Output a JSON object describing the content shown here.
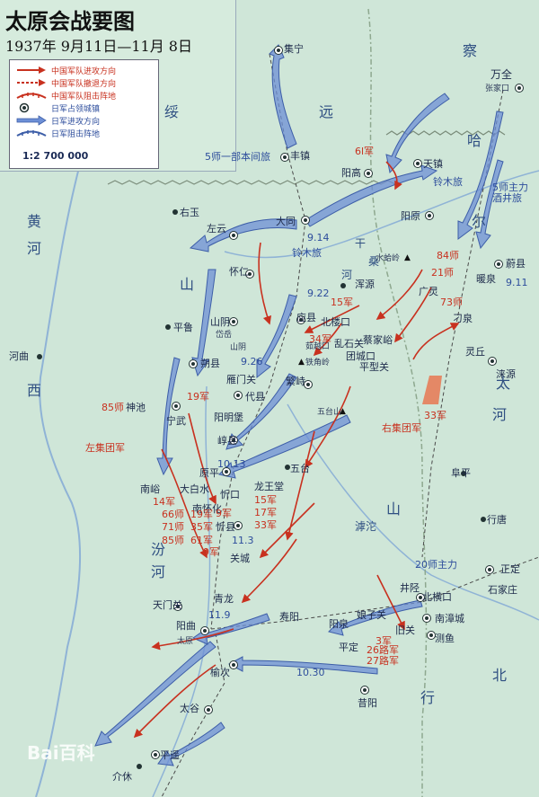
{
  "title": "太原会战要图",
  "subtitle": "1937年 9月11日—11月 8日",
  "legend": {
    "items": [
      {
        "label": "中国军队进攻方向",
        "color": "#d23a22"
      },
      {
        "label": "中国军队撤退方向",
        "color": "#d23a22"
      },
      {
        "label": "中国军队阻击阵地",
        "color": "#d23a22"
      },
      {
        "label": "日军占领城镇",
        "color": "#2d4d9c"
      },
      {
        "label": "日军进攻方向",
        "color": "#2d4d9c"
      },
      {
        "label": "日军阻击阵地",
        "color": "#2d4d9c"
      }
    ],
    "scale": "1:2 700 000"
  },
  "colors": {
    "land": "#cfe6d8",
    "red": "#c8311f",
    "blue": "#5a7fc8",
    "border": "#8ea88f"
  },
  "provinces": [
    "绥",
    "远",
    "察",
    "哈",
    "尔",
    "山",
    "西",
    "河",
    "北",
    "太",
    "行",
    "山",
    "黄",
    "河",
    "汾",
    "河",
    "滹沱",
    "桑",
    "干",
    "河"
  ],
  "cities": [
    {
      "name": "集宁"
    },
    {
      "name": "万全"
    },
    {
      "name": "张家口"
    },
    {
      "name": "丰镇"
    },
    {
      "name": "天镇"
    },
    {
      "name": "阳高"
    },
    {
      "name": "右玉"
    },
    {
      "name": "左云"
    },
    {
      "name": "大同"
    },
    {
      "name": "阳原"
    },
    {
      "name": "怀仁"
    },
    {
      "name": "应县"
    },
    {
      "name": "浑源"
    },
    {
      "name": "广灵"
    },
    {
      "name": "蔚县"
    },
    {
      "name": "暖泉"
    },
    {
      "name": "平鲁"
    },
    {
      "name": "山阴"
    },
    {
      "name": "岱岳"
    },
    {
      "name": "山阴"
    },
    {
      "name": "北楼口"
    },
    {
      "name": "茹越口"
    },
    {
      "name": "乱石关"
    },
    {
      "name": "蔡家峪"
    },
    {
      "name": "团城口"
    },
    {
      "name": "平型关"
    },
    {
      "name": "灵丘"
    },
    {
      "name": "涞源"
    },
    {
      "name": "刁泉"
    },
    {
      "name": "朔县"
    },
    {
      "name": "河曲"
    },
    {
      "name": "雁门关"
    },
    {
      "name": "代县"
    },
    {
      "name": "繁峙"
    },
    {
      "name": "阳明堡"
    },
    {
      "name": "神池"
    },
    {
      "name": "宁武"
    },
    {
      "name": "阜平"
    },
    {
      "name": "五台山"
    },
    {
      "name": "崞县"
    },
    {
      "name": "原平"
    },
    {
      "name": "南峪"
    },
    {
      "name": "大白水"
    },
    {
      "name": "忻口"
    },
    {
      "name": "五台"
    },
    {
      "name": "龙王堂"
    },
    {
      "name": "南怀化"
    },
    {
      "name": "忻县"
    },
    {
      "name": "行唐"
    },
    {
      "name": "关城"
    },
    {
      "name": "正定"
    },
    {
      "name": "石家庄"
    },
    {
      "name": "天门关"
    },
    {
      "name": "青龙"
    },
    {
      "name": "井陉"
    },
    {
      "name": "北横口"
    },
    {
      "name": "阳曲"
    },
    {
      "name": "寿阳"
    },
    {
      "name": "娘子关"
    },
    {
      "name": "阳泉"
    },
    {
      "name": "旧关"
    },
    {
      "name": "南漳城"
    },
    {
      "name": "测鱼"
    },
    {
      "name": "平定"
    },
    {
      "name": "太原"
    },
    {
      "name": "榆次"
    },
    {
      "name": "昔阳"
    },
    {
      "name": "太谷"
    },
    {
      "name": "平遥"
    },
    {
      "name": "介休"
    },
    {
      "name": "水蛤岭"
    },
    {
      "name": "铁角岭"
    }
  ],
  "red_labels": [
    "6l军",
    "84师",
    "21师",
    "73师",
    "15军",
    "34军",
    "33军",
    "右集团军",
    "19军",
    "85师",
    "左集团军",
    "14军",
    "66师",
    "71师",
    "85师",
    "19军",
    "35军",
    "61军",
    "9军",
    "15军",
    "33军",
    "17军",
    "20师主力",
    "3军",
    "26路军",
    "27路军",
    "9军"
  ],
  "blue_labels": [
    "5师一部本间旅",
    "铃木旅",
    "5师主力",
    "酒井旅",
    "铃木旅",
    "9.14",
    "9.22",
    "9.11",
    "9.26",
    "10.13",
    "11.3",
    "11.9",
    "10.30"
  ],
  "mountains": [
    "水蛤岭",
    "铁角岭",
    "五台山"
  ],
  "watermark": "Bai百科"
}
